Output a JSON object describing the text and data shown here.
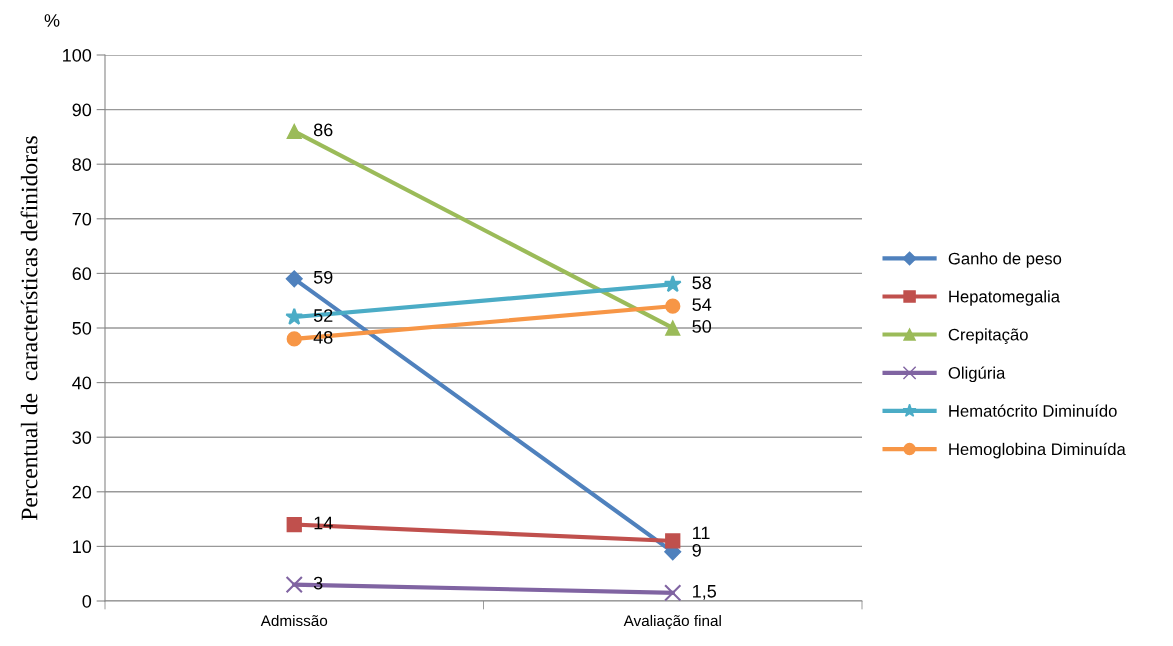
{
  "chart_data": {
    "type": "line",
    "ylabel": "Percentual de  características definidoras",
    "annotations": [
      "%"
    ],
    "categories": [
      "Admissão",
      "Avaliação final"
    ],
    "ylim": [
      0,
      100
    ],
    "yticks": [
      0,
      10,
      20,
      30,
      40,
      50,
      60,
      70,
      80,
      90,
      100
    ],
    "grid": "y",
    "legend": "right",
    "series": [
      {
        "name": "Ganho de peso",
        "color": "#4f81bd",
        "marker": "diamond",
        "values": [
          59,
          9
        ],
        "value_labels": [
          "59",
          "9"
        ]
      },
      {
        "name": "Hepatomegalia",
        "color": "#c0504d",
        "marker": "square",
        "values": [
          14,
          11
        ],
        "value_labels": [
          "14",
          "11"
        ]
      },
      {
        "name": "Crepitação",
        "color": "#9bbb59",
        "marker": "triangle",
        "values": [
          86,
          50
        ],
        "value_labels": [
          "86",
          "50"
        ]
      },
      {
        "name": "Oligúria",
        "color": "#8064a2",
        "marker": "cross",
        "values": [
          3,
          1.5
        ],
        "value_labels": [
          "3",
          "1,5"
        ]
      },
      {
        "name": "Hematócrito Diminuído",
        "color": "#4bacc6",
        "marker": "star",
        "values": [
          52,
          58
        ],
        "value_labels": [
          "52",
          "58"
        ]
      },
      {
        "name": "Hemoglobina Diminuída",
        "color": "#f79646",
        "marker": "circle",
        "values": [
          48,
          54
        ],
        "value_labels": [
          "48",
          "54"
        ]
      }
    ]
  }
}
